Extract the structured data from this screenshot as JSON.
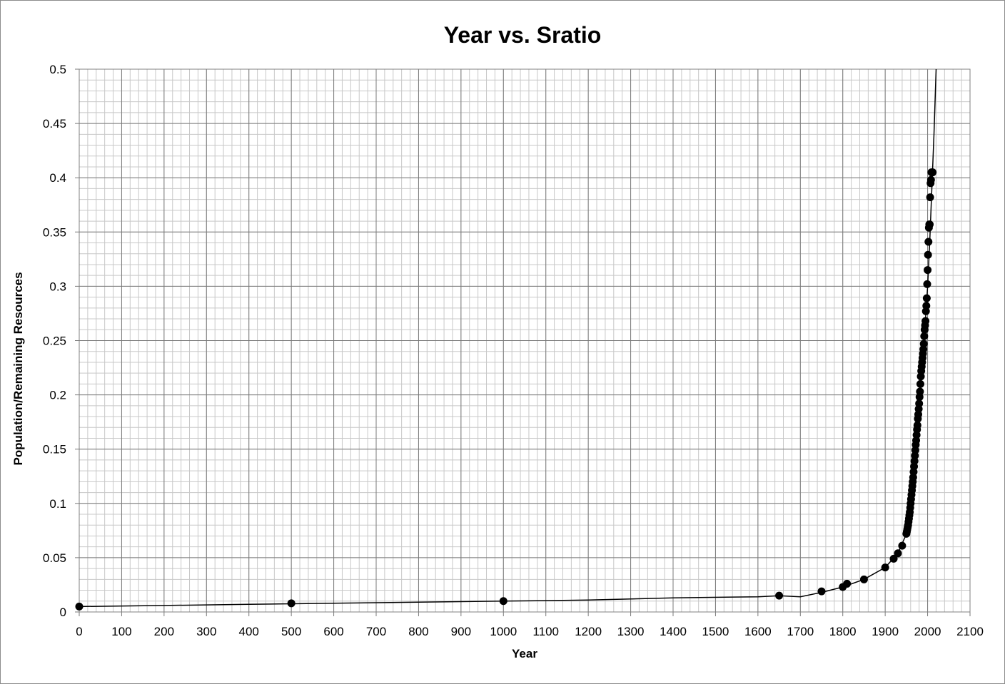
{
  "chart_data": {
    "type": "scatter",
    "title": "Year vs. Sratio",
    "xlabel": "Year",
    "ylabel": "Population/Remaining Resources",
    "xlim": [
      0,
      2100
    ],
    "ylim": [
      0,
      0.5
    ],
    "x_ticks": [
      0,
      100,
      200,
      300,
      400,
      500,
      600,
      700,
      800,
      900,
      1000,
      1100,
      1200,
      1300,
      1400,
      1500,
      1600,
      1700,
      1800,
      1900,
      2000,
      2100
    ],
    "y_ticks": [
      0,
      0.05,
      0.1,
      0.15,
      0.2,
      0.25,
      0.3,
      0.35,
      0.4,
      0.45,
      0.5
    ],
    "x_tick_labels": [
      "0",
      "100",
      "200",
      "300",
      "400",
      "500",
      "600",
      "700",
      "800",
      "900",
      "1000",
      "1100",
      "1200",
      "1300",
      "1400",
      "1500",
      "1600",
      "1700",
      "1800",
      "1900",
      "2000",
      "2100"
    ],
    "y_tick_labels": [
      "0",
      "0.05",
      "0.1",
      "0.15",
      "0.2",
      "0.25",
      "0.3",
      "0.35",
      "0.4",
      "0.45",
      "0.5"
    ],
    "grid": true,
    "minor_grid": true,
    "legend": "none",
    "marker_color": "#000000",
    "line_color": "#000000",
    "series": [
      {
        "x": [
          0,
          500,
          1000,
          1650,
          1750,
          1800,
          1810,
          1850,
          1900,
          1920,
          1930,
          1940,
          1950,
          1951,
          1952,
          1953,
          1954,
          1955,
          1956,
          1957,
          1958,
          1959,
          1960,
          1961,
          1962,
          1963,
          1964,
          1965,
          1966,
          1967,
          1968,
          1969,
          1970,
          1971,
          1972,
          1973,
          1974,
          1975,
          1976,
          1977,
          1978,
          1979,
          1980,
          1981,
          1982,
          1983,
          1984,
          1985,
          1986,
          1987,
          1988,
          1989,
          1990,
          1991,
          1992,
          1993,
          1994,
          1995,
          1996,
          1997,
          1998,
          1999,
          2000,
          2001,
          2002,
          2003,
          2004,
          2005,
          2006,
          2007,
          2008,
          2009,
          2010,
          2011,
          2012
        ],
        "y": [
          0.005,
          0.008,
          0.01,
          0.015,
          0.019,
          0.023,
          0.026,
          0.03,
          0.041,
          0.049,
          0.054,
          0.061,
          0.072,
          0.074,
          0.076,
          0.078,
          0.08,
          0.083,
          0.086,
          0.089,
          0.092,
          0.096,
          0.1,
          0.104,
          0.108,
          0.112,
          0.116,
          0.12,
          0.124,
          0.129,
          0.134,
          0.139,
          0.144,
          0.149,
          0.154,
          0.158,
          0.163,
          0.168,
          0.172,
          0.178,
          0.182,
          0.187,
          0.192,
          0.198,
          0.203,
          0.21,
          0.217,
          0.222,
          0.226,
          0.23,
          0.234,
          0.238,
          0.242,
          0.247,
          0.254,
          0.26,
          0.264,
          0.268,
          0.277,
          0.282,
          0.289,
          0.302,
          0.315,
          0.329,
          0.341,
          0.354,
          0.357,
          0.357,
          0.382,
          0.395,
          0.398,
          0.405,
          0.405,
          0.405,
          0.405
        ]
      }
    ],
    "trendline": {
      "x": [
        0,
        200,
        400,
        600,
        800,
        1000,
        1200,
        1400,
        1600,
        1650,
        1700,
        1750,
        1800,
        1850,
        1900,
        1930,
        1950,
        1960,
        1970,
        1980,
        1990,
        2000,
        2005,
        2010,
        2015,
        2020
      ],
      "y": [
        0.005,
        0.006,
        0.007,
        0.008,
        0.009,
        0.01,
        0.011,
        0.013,
        0.014,
        0.015,
        0.014,
        0.018,
        0.023,
        0.03,
        0.041,
        0.054,
        0.072,
        0.096,
        0.142,
        0.186,
        0.24,
        0.3,
        0.34,
        0.39,
        0.44,
        0.5
      ]
    }
  }
}
